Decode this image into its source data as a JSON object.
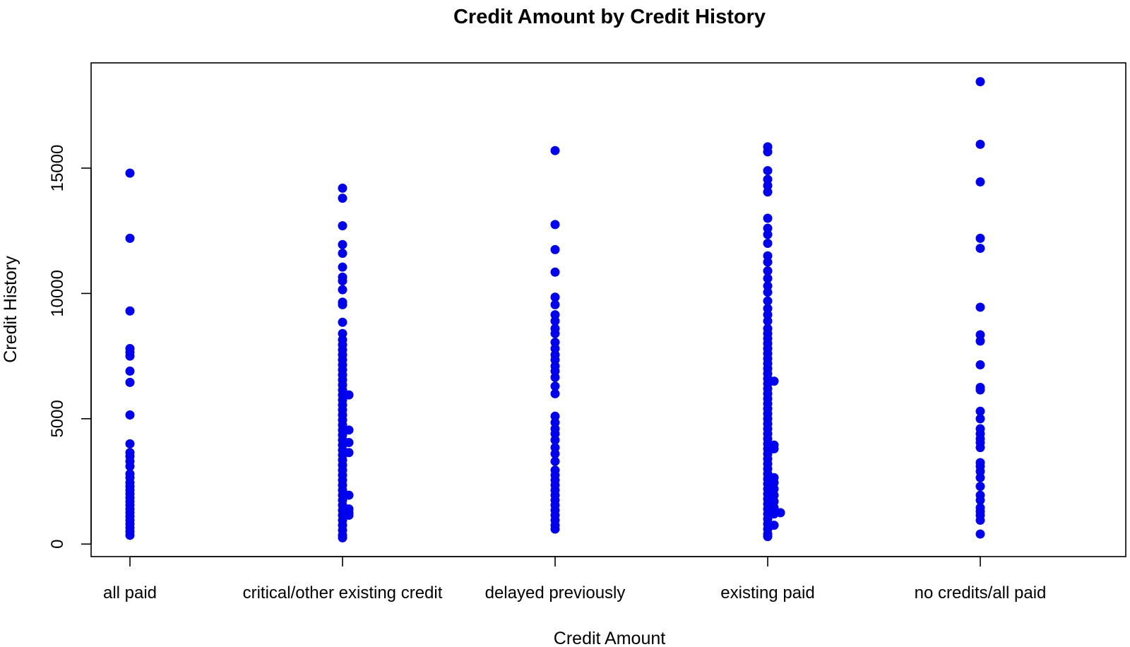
{
  "chart_data": {
    "type": "scatter",
    "title": "Credit Amount by Credit History",
    "xlabel": "Credit Amount",
    "ylabel": "Credit History",
    "categories": [
      "all paid",
      "critical/other existing credit",
      "delayed previously",
      "existing paid",
      "no credits/all paid"
    ],
    "ylim": [
      -500,
      19200
    ],
    "y_ticks": [
      0,
      5000,
      10000,
      15000
    ],
    "y_tick_labels": [
      "0",
      "5000",
      "10000",
      "15000"
    ],
    "point_color": "#0000ee",
    "grid": false,
    "series": [
      {
        "category": "all paid",
        "points": [
          {
            "x": 0,
            "y": 14800
          },
          {
            "x": 0,
            "y": 12200
          },
          {
            "x": 0,
            "y": 9300
          },
          {
            "x": 0,
            "y": 7800
          },
          {
            "x": 0,
            "y": 7650
          },
          {
            "x": 0,
            "y": 7500
          },
          {
            "x": 0,
            "y": 6900
          },
          {
            "x": 0,
            "y": 6450
          },
          {
            "x": 0,
            "y": 5150
          },
          {
            "x": 0,
            "y": 4000
          },
          {
            "x": 0,
            "y": 3650
          },
          {
            "x": 0,
            "y": 3500
          },
          {
            "x": 0,
            "y": 3300
          },
          {
            "x": 0,
            "y": 3100
          },
          {
            "x": 0,
            "y": 2800
          },
          {
            "x": 0,
            "y": 2650
          },
          {
            "x": 0,
            "y": 2450
          },
          {
            "x": 0,
            "y": 2300
          },
          {
            "x": 0,
            "y": 2150
          },
          {
            "x": 0,
            "y": 2000
          },
          {
            "x": 0,
            "y": 1850
          },
          {
            "x": 0,
            "y": 1700
          },
          {
            "x": 0,
            "y": 1550
          },
          {
            "x": 0,
            "y": 1400
          },
          {
            "x": 0,
            "y": 1250
          },
          {
            "x": 0,
            "y": 1100
          },
          {
            "x": 0,
            "y": 950
          },
          {
            "x": 0,
            "y": 800
          },
          {
            "x": 0,
            "y": 650
          },
          {
            "x": 0,
            "y": 500
          },
          {
            "x": 0,
            "y": 350
          }
        ]
      },
      {
        "category": "critical/other existing credit",
        "points": [
          {
            "x": 1,
            "y": 14200
          },
          {
            "x": 1,
            "y": 13800
          },
          {
            "x": 1,
            "y": 12700
          },
          {
            "x": 1,
            "y": 11950
          },
          {
            "x": 1,
            "y": 11600
          },
          {
            "x": 1,
            "y": 11050
          },
          {
            "x": 1,
            "y": 10650
          },
          {
            "x": 1,
            "y": 10500
          },
          {
            "x": 1,
            "y": 10150
          },
          {
            "x": 1,
            "y": 9650
          },
          {
            "x": 1,
            "y": 9550
          },
          {
            "x": 1,
            "y": 8850
          },
          {
            "x": 1,
            "y": 8400
          },
          {
            "x": 1,
            "y": 8150
          },
          {
            "x": 1,
            "y": 7950
          },
          {
            "x": 1,
            "y": 7750
          },
          {
            "x": 1,
            "y": 7550
          },
          {
            "x": 1,
            "y": 7350
          },
          {
            "x": 1,
            "y": 7150
          },
          {
            "x": 1,
            "y": 6950
          },
          {
            "x": 1,
            "y": 6750
          },
          {
            "x": 1,
            "y": 6550
          },
          {
            "x": 1,
            "y": 6350
          },
          {
            "x": 1,
            "y": 6150
          },
          {
            "x": 1,
            "y": 5950
          },
          {
            "x": 1,
            "y": 5750
          },
          {
            "x": 1,
            "y": 5550
          },
          {
            "x": 1,
            "y": 5350
          },
          {
            "x": 1,
            "y": 5150
          },
          {
            "x": 1,
            "y": 4950
          },
          {
            "x": 1,
            "y": 4750
          },
          {
            "x": 1,
            "y": 4550
          },
          {
            "x": 1,
            "y": 4350
          },
          {
            "x": 1,
            "y": 4150
          },
          {
            "x": 1,
            "y": 3950
          },
          {
            "x": 1,
            "y": 3750
          },
          {
            "x": 1,
            "y": 3550
          },
          {
            "x": 1,
            "y": 3350
          },
          {
            "x": 1,
            "y": 3150
          },
          {
            "x": 1,
            "y": 2950
          },
          {
            "x": 1,
            "y": 2750
          },
          {
            "x": 1,
            "y": 2550
          },
          {
            "x": 1,
            "y": 2350
          },
          {
            "x": 1,
            "y": 2150
          },
          {
            "x": 1,
            "y": 1950
          },
          {
            "x": 1,
            "y": 1750
          },
          {
            "x": 1,
            "y": 1550
          },
          {
            "x": 1,
            "y": 1350
          },
          {
            "x": 1,
            "y": 1150
          },
          {
            "x": 1,
            "y": 950
          },
          {
            "x": 1,
            "y": 750
          },
          {
            "x": 1,
            "y": 550
          },
          {
            "x": 1,
            "y": 350
          },
          {
            "x": 1,
            "y": 250
          },
          {
            "x": 1.03,
            "y": 5950
          },
          {
            "x": 1.03,
            "y": 4550
          },
          {
            "x": 1.03,
            "y": 4050
          },
          {
            "x": 1.03,
            "y": 3650
          },
          {
            "x": 1.03,
            "y": 1950
          },
          {
            "x": 1.03,
            "y": 1400
          },
          {
            "x": 1.03,
            "y": 1250
          },
          {
            "x": 1.03,
            "y": 1150
          }
        ]
      },
      {
        "category": "delayed previously",
        "points": [
          {
            "x": 2,
            "y": 15700
          },
          {
            "x": 2,
            "y": 12750
          },
          {
            "x": 2,
            "y": 11750
          },
          {
            "x": 2,
            "y": 10850
          },
          {
            "x": 2,
            "y": 9850
          },
          {
            "x": 2,
            "y": 9550
          },
          {
            "x": 2,
            "y": 9150
          },
          {
            "x": 2,
            "y": 8900
          },
          {
            "x": 2,
            "y": 8600
          },
          {
            "x": 2,
            "y": 8400
          },
          {
            "x": 2,
            "y": 8050
          },
          {
            "x": 2,
            "y": 7800
          },
          {
            "x": 2,
            "y": 7550
          },
          {
            "x": 2,
            "y": 7350
          },
          {
            "x": 2,
            "y": 7100
          },
          {
            "x": 2,
            "y": 6900
          },
          {
            "x": 2,
            "y": 6650
          },
          {
            "x": 2,
            "y": 6300
          },
          {
            "x": 2,
            "y": 6000
          },
          {
            "x": 2,
            "y": 5100
          },
          {
            "x": 2,
            "y": 4850
          },
          {
            "x": 2,
            "y": 4600
          },
          {
            "x": 2,
            "y": 4400
          },
          {
            "x": 2,
            "y": 4150
          },
          {
            "x": 2,
            "y": 3850
          },
          {
            "x": 2,
            "y": 3600
          },
          {
            "x": 2,
            "y": 3300
          },
          {
            "x": 2,
            "y": 2950
          },
          {
            "x": 2,
            "y": 2750
          },
          {
            "x": 2,
            "y": 2550
          },
          {
            "x": 2,
            "y": 2350
          },
          {
            "x": 2,
            "y": 2150
          },
          {
            "x": 2,
            "y": 1950
          },
          {
            "x": 2,
            "y": 1750
          },
          {
            "x": 2,
            "y": 1550
          },
          {
            "x": 2,
            "y": 1350
          },
          {
            "x": 2,
            "y": 1150
          },
          {
            "x": 2,
            "y": 950
          },
          {
            "x": 2,
            "y": 750
          },
          {
            "x": 2,
            "y": 600
          }
        ]
      },
      {
        "category": "existing paid",
        "points": [
          {
            "x": 3,
            "y": 15850
          },
          {
            "x": 3,
            "y": 15650
          },
          {
            "x": 3,
            "y": 14900
          },
          {
            "x": 3,
            "y": 14550
          },
          {
            "x": 3,
            "y": 14300
          },
          {
            "x": 3,
            "y": 14050
          },
          {
            "x": 3,
            "y": 13000
          },
          {
            "x": 3,
            "y": 12600
          },
          {
            "x": 3,
            "y": 12350
          },
          {
            "x": 3,
            "y": 12000
          },
          {
            "x": 3,
            "y": 11500
          },
          {
            "x": 3,
            "y": 11250
          },
          {
            "x": 3,
            "y": 10900
          },
          {
            "x": 3,
            "y": 10600
          },
          {
            "x": 3,
            "y": 10300
          },
          {
            "x": 3,
            "y": 10050
          },
          {
            "x": 3,
            "y": 9700
          },
          {
            "x": 3,
            "y": 9400
          },
          {
            "x": 3,
            "y": 9150
          },
          {
            "x": 3,
            "y": 8900
          },
          {
            "x": 3,
            "y": 8600
          },
          {
            "x": 3,
            "y": 8400
          },
          {
            "x": 3,
            "y": 8200
          },
          {
            "x": 3,
            "y": 8000
          },
          {
            "x": 3,
            "y": 7800
          },
          {
            "x": 3,
            "y": 7600
          },
          {
            "x": 3,
            "y": 7400
          },
          {
            "x": 3,
            "y": 7200
          },
          {
            "x": 3,
            "y": 7000
          },
          {
            "x": 3,
            "y": 6800
          },
          {
            "x": 3,
            "y": 6600
          },
          {
            "x": 3,
            "y": 6400
          },
          {
            "x": 3,
            "y": 6200
          },
          {
            "x": 3,
            "y": 6000
          },
          {
            "x": 3,
            "y": 5800
          },
          {
            "x": 3,
            "y": 5600
          },
          {
            "x": 3,
            "y": 5400
          },
          {
            "x": 3,
            "y": 5200
          },
          {
            "x": 3,
            "y": 5000
          },
          {
            "x": 3,
            "y": 4800
          },
          {
            "x": 3,
            "y": 4600
          },
          {
            "x": 3,
            "y": 4400
          },
          {
            "x": 3,
            "y": 4200
          },
          {
            "x": 3,
            "y": 4000
          },
          {
            "x": 3,
            "y": 3800
          },
          {
            "x": 3,
            "y": 3600
          },
          {
            "x": 3,
            "y": 3400
          },
          {
            "x": 3,
            "y": 3200
          },
          {
            "x": 3,
            "y": 3000
          },
          {
            "x": 3,
            "y": 2800
          },
          {
            "x": 3,
            "y": 2600
          },
          {
            "x": 3,
            "y": 2400
          },
          {
            "x": 3,
            "y": 2200
          },
          {
            "x": 3,
            "y": 2000
          },
          {
            "x": 3,
            "y": 1800
          },
          {
            "x": 3,
            "y": 1600
          },
          {
            "x": 3,
            "y": 1400
          },
          {
            "x": 3,
            "y": 1200
          },
          {
            "x": 3,
            "y": 1000
          },
          {
            "x": 3,
            "y": 800
          },
          {
            "x": 3,
            "y": 600
          },
          {
            "x": 3,
            "y": 400
          },
          {
            "x": 3,
            "y": 300
          },
          {
            "x": 3.03,
            "y": 6500
          },
          {
            "x": 3.03,
            "y": 3950
          },
          {
            "x": 3.03,
            "y": 3800
          },
          {
            "x": 3.03,
            "y": 2650
          },
          {
            "x": 3.03,
            "y": 2450
          },
          {
            "x": 3.03,
            "y": 2200
          },
          {
            "x": 3.03,
            "y": 1950
          },
          {
            "x": 3.03,
            "y": 1700
          },
          {
            "x": 3.03,
            "y": 1450
          },
          {
            "x": 3.03,
            "y": 1200
          },
          {
            "x": 3.03,
            "y": 750
          },
          {
            "x": 3.06,
            "y": 1250
          }
        ]
      },
      {
        "category": "no credits/all paid",
        "points": [
          {
            "x": 4,
            "y": 18450
          },
          {
            "x": 4,
            "y": 15950
          },
          {
            "x": 4,
            "y": 14450
          },
          {
            "x": 4,
            "y": 12200
          },
          {
            "x": 4,
            "y": 11800
          },
          {
            "x": 4,
            "y": 9450
          },
          {
            "x": 4,
            "y": 8350
          },
          {
            "x": 4,
            "y": 8100
          },
          {
            "x": 4,
            "y": 7150
          },
          {
            "x": 4,
            "y": 6250
          },
          {
            "x": 4,
            "y": 6150
          },
          {
            "x": 4,
            "y": 5300
          },
          {
            "x": 4,
            "y": 5000
          },
          {
            "x": 4,
            "y": 4600
          },
          {
            "x": 4,
            "y": 4400
          },
          {
            "x": 4,
            "y": 4200
          },
          {
            "x": 4,
            "y": 4050
          },
          {
            "x": 4,
            "y": 3850
          },
          {
            "x": 4,
            "y": 3250
          },
          {
            "x": 4,
            "y": 3100
          },
          {
            "x": 4,
            "y": 2900
          },
          {
            "x": 4,
            "y": 2650
          },
          {
            "x": 4,
            "y": 2300
          },
          {
            "x": 4,
            "y": 1950
          },
          {
            "x": 4,
            "y": 1750
          },
          {
            "x": 4,
            "y": 1450
          },
          {
            "x": 4,
            "y": 1300
          },
          {
            "x": 4,
            "y": 1150
          },
          {
            "x": 4,
            "y": 950
          },
          {
            "x": 4,
            "y": 400
          }
        ]
      }
    ]
  }
}
